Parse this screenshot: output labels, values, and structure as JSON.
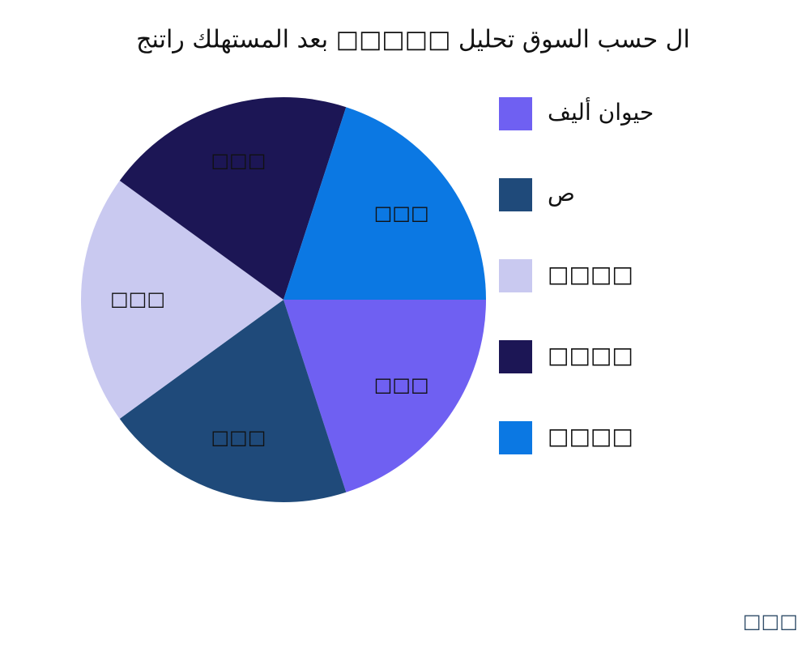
{
  "chart_data": {
    "type": "pie",
    "title": "ال حسب السوق تحليل □□□□□ بعد المستهلك راتنج",
    "categories": [
      "حيوان أليف",
      "ص",
      "□□□□",
      "□□□□",
      "□□□□"
    ],
    "values": [
      20,
      20,
      20,
      20,
      20
    ],
    "value_labels": [
      "□□□",
      "□□□",
      "□□□",
      "□□□",
      "□□□"
    ],
    "colors": [
      "#6f60f2",
      "#1f4a7a",
      "#c9c9f0",
      "#1c1655",
      "#0b78e3"
    ],
    "caption": "□□□"
  }
}
